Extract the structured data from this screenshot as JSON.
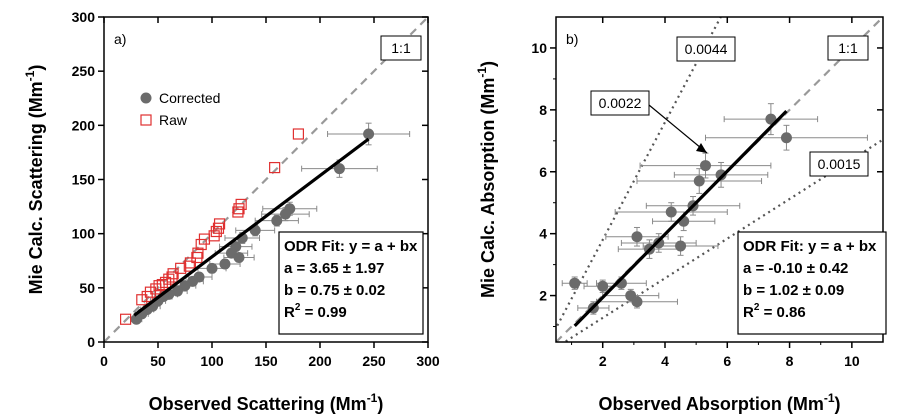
{
  "chart_data": [
    {
      "type": "scatter",
      "panel_label": "a)",
      "xlabel": "Observed Scattering (Mm",
      "ylabel": "Mie Calc. Scattering (Mm",
      "unit_superscript": "-1",
      "xlim": [
        0,
        300
      ],
      "ylim": [
        0,
        300
      ],
      "xticks": [
        "0",
        "50",
        "100",
        "150",
        "200",
        "250",
        "300"
      ],
      "yticks": [
        "0",
        "50",
        "100",
        "150",
        "200",
        "250",
        "300"
      ],
      "reference_labels": [
        {
          "text": "1:1",
          "slope": 1
        }
      ],
      "legend": {
        "placement": "center-left",
        "entries": [
          "Corrected",
          "Raw"
        ]
      },
      "fit_box": [
        "ODR Fit: y = a + bx",
        "a = 3.65 ± 1.97",
        "b = 0.75 ± 0.02",
        "R",
        "2",
        " = 0.99"
      ],
      "fit_line": {
        "intercept": 3.65,
        "slope": 0.75,
        "x_range": [
          28,
          245
        ]
      },
      "series": [
        {
          "name": "Corrected",
          "color": "#6b6b6b",
          "marker": "filled-circle",
          "points": [
            {
              "x": 245,
              "y": 192,
              "xerr": 38,
              "yerr": 10
            },
            {
              "x": 218,
              "y": 160,
              "xerr": 35,
              "yerr": 8
            },
            {
              "x": 172,
              "y": 123,
              "xerr": 25,
              "yerr": 6
            },
            {
              "x": 168,
              "y": 118,
              "xerr": 22,
              "yerr": 6
            },
            {
              "x": 160,
              "y": 112,
              "xerr": 20,
              "yerr": 5
            },
            {
              "x": 140,
              "y": 103,
              "xerr": 18,
              "yerr": 5
            },
            {
              "x": 128,
              "y": 96,
              "xerr": 16,
              "yerr": 5
            },
            {
              "x": 122,
              "y": 88,
              "xerr": 15,
              "yerr": 4
            },
            {
              "x": 118,
              "y": 82,
              "xerr": 15,
              "yerr": 4
            },
            {
              "x": 125,
              "y": 78,
              "xerr": 14,
              "yerr": 4
            },
            {
              "x": 112,
              "y": 72,
              "xerr": 14,
              "yerr": 4
            },
            {
              "x": 100,
              "y": 68,
              "xerr": 13,
              "yerr": 4
            },
            {
              "x": 88,
              "y": 60,
              "xerr": 12,
              "yerr": 3
            },
            {
              "x": 82,
              "y": 56,
              "xerr": 10,
              "yerr": 3
            },
            {
              "x": 75,
              "y": 52,
              "xerr": 10,
              "yerr": 3
            },
            {
              "x": 68,
              "y": 47,
              "xerr": 9,
              "yerr": 3
            },
            {
              "x": 60,
              "y": 44,
              "xerr": 8,
              "yerr": 3
            },
            {
              "x": 55,
              "y": 42,
              "xerr": 8,
              "yerr": 3
            },
            {
              "x": 50,
              "y": 38,
              "xerr": 7,
              "yerr": 3
            },
            {
              "x": 45,
              "y": 33,
              "xerr": 7,
              "yerr": 3
            },
            {
              "x": 40,
              "y": 30,
              "xerr": 6,
              "yerr": 2
            },
            {
              "x": 35,
              "y": 26,
              "xerr": 6,
              "yerr": 2
            },
            {
              "x": 30,
              "y": 21,
              "xerr": 5,
              "yerr": 2
            }
          ]
        },
        {
          "name": "Raw",
          "color": "#e03030",
          "marker": "open-square",
          "points": [
            {
              "x": 180,
              "y": 192
            },
            {
              "x": 158,
              "y": 161
            },
            {
              "x": 127,
              "y": 127
            },
            {
              "x": 125,
              "y": 123
            },
            {
              "x": 124,
              "y": 120
            },
            {
              "x": 107,
              "y": 109
            },
            {
              "x": 106,
              "y": 105
            },
            {
              "x": 104,
              "y": 102
            },
            {
              "x": 102,
              "y": 98
            },
            {
              "x": 93,
              "y": 95
            },
            {
              "x": 90,
              "y": 90
            },
            {
              "x": 87,
              "y": 82
            },
            {
              "x": 86,
              "y": 78
            },
            {
              "x": 80,
              "y": 73
            },
            {
              "x": 79,
              "y": 70
            },
            {
              "x": 71,
              "y": 68
            },
            {
              "x": 64,
              "y": 63
            },
            {
              "x": 63,
              "y": 60
            },
            {
              "x": 60,
              "y": 58
            },
            {
              "x": 57,
              "y": 55
            },
            {
              "x": 54,
              "y": 53
            },
            {
              "x": 51,
              "y": 52
            },
            {
              "x": 48,
              "y": 49
            },
            {
              "x": 43,
              "y": 46
            },
            {
              "x": 40,
              "y": 42
            },
            {
              "x": 35,
              "y": 39
            },
            {
              "x": 20,
              "y": 21
            }
          ]
        }
      ]
    },
    {
      "type": "scatter",
      "panel_label": "b)",
      "xlabel": "Observed Absorption (Mm",
      "ylabel": "Mie Calc. Absorption (Mm",
      "unit_superscript": "-1",
      "xlim": [
        0.5,
        11
      ],
      "ylim": [
        0.5,
        11
      ],
      "xticks": [
        "2",
        "4",
        "6",
        "8",
        "10"
      ],
      "yticks": [
        "2",
        "4",
        "6",
        "8",
        "10"
      ],
      "reference_labels": [
        {
          "text": "0.0044",
          "slope": 1.9,
          "style": "dotted"
        },
        {
          "text": "1:1",
          "slope": 1,
          "style": "dashed"
        },
        {
          "text": "0.0022",
          "style": "arrow"
        },
        {
          "text": "0.0015",
          "slope": 0.64,
          "style": "dotted"
        }
      ],
      "fit_box": [
        "ODR Fit: y = a + bx",
        "a = -0.10 ± 0.42",
        "b = 1.02 ± 0.09",
        "R",
        "2",
        " = 0.86"
      ],
      "fit_line": {
        "intercept": -0.1,
        "slope": 1.02,
        "x_range": [
          1.1,
          7.9
        ]
      },
      "series": [
        {
          "name": "",
          "color": "#6b6b6b",
          "marker": "filled-circle",
          "points": [
            {
              "x": 7.4,
              "y": 7.7,
              "xerr": 1.5,
              "yerr": 0.5
            },
            {
              "x": 7.9,
              "y": 7.1,
              "xerr": 2.6,
              "yerr": 0.4
            },
            {
              "x": 5.3,
              "y": 6.2,
              "xerr": 2.1,
              "yerr": 0.4
            },
            {
              "x": 5.8,
              "y": 5.9,
              "xerr": 1.5,
              "yerr": 0.4
            },
            {
              "x": 5.1,
              "y": 5.7,
              "xerr": 2.0,
              "yerr": 0.4
            },
            {
              "x": 4.9,
              "y": 4.9,
              "xerr": 1.5,
              "yerr": 0.3
            },
            {
              "x": 4.2,
              "y": 4.7,
              "xerr": 1.8,
              "yerr": 0.3
            },
            {
              "x": 4.6,
              "y": 4.4,
              "xerr": 1.0,
              "yerr": 0.3
            },
            {
              "x": 3.1,
              "y": 3.9,
              "xerr": 1.0,
              "yerr": 0.3
            },
            {
              "x": 3.8,
              "y": 3.7,
              "xerr": 1.2,
              "yerr": 0.3
            },
            {
              "x": 3.5,
              "y": 3.5,
              "xerr": 1.0,
              "yerr": 0.3
            },
            {
              "x": 4.5,
              "y": 3.6,
              "xerr": 1.2,
              "yerr": 0.3
            },
            {
              "x": 2.0,
              "y": 2.3,
              "xerr": 0.6,
              "yerr": 0.2
            },
            {
              "x": 1.1,
              "y": 2.4,
              "xerr": 0.4,
              "yerr": 0.2
            },
            {
              "x": 2.6,
              "y": 2.4,
              "xerr": 0.8,
              "yerr": 0.2
            },
            {
              "x": 2.9,
              "y": 2.0,
              "xerr": 0.9,
              "yerr": 0.2
            },
            {
              "x": 3.1,
              "y": 1.8,
              "xerr": 1.3,
              "yerr": 0.2
            },
            {
              "x": 1.7,
              "y": 1.6,
              "xerr": 0.5,
              "yerr": 0.2
            }
          ]
        }
      ]
    }
  ]
}
